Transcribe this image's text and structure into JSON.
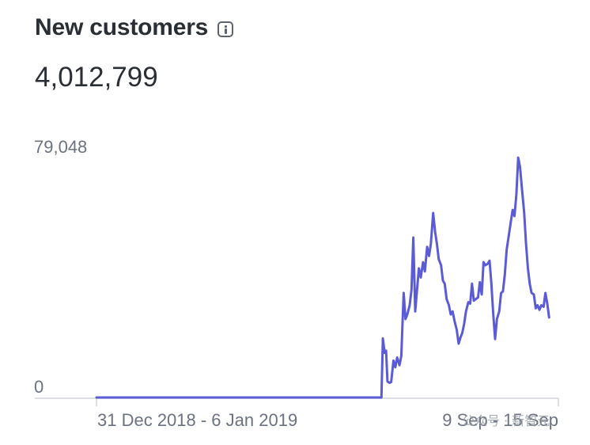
{
  "header": {
    "title": "New customers",
    "info_icon": "info-icon"
  },
  "total": "4,012,799",
  "colors": {
    "line": "#5b5bd6",
    "axis": "#d0d4da",
    "text": "#2a2f36",
    "muted": "#6b7280"
  },
  "watermark": "公众号 · 新智元",
  "chart_data": {
    "type": "line",
    "title": "",
    "xlabel": "",
    "ylabel": "",
    "ylim": [
      0,
      79048
    ],
    "y_tick_labels": [
      "79,048",
      "0"
    ],
    "x_tick_labels": [
      "31 Dec 2018 - 6 Jan 2019",
      "9 Sep - 15 Sep"
    ],
    "x_range": [
      0,
      100
    ],
    "grid": false,
    "legend": "none",
    "series": [
      {
        "values": [
          [
            0,
            0
          ],
          [
            61.7,
            0
          ],
          [
            62.0,
            19200
          ],
          [
            62.4,
            14500
          ],
          [
            62.7,
            15200
          ],
          [
            63.0,
            5200
          ],
          [
            63.4,
            4800
          ],
          [
            63.8,
            5000
          ],
          [
            64.3,
            12000
          ],
          [
            64.7,
            9800
          ],
          [
            65.1,
            13000
          ],
          [
            65.6,
            10500
          ],
          [
            66.0,
            13500
          ],
          [
            66.5,
            34000
          ],
          [
            66.9,
            25500
          ],
          [
            67.3,
            27000
          ],
          [
            67.8,
            30000
          ],
          [
            68.2,
            35000
          ],
          [
            68.6,
            52000
          ],
          [
            69.0,
            28000
          ],
          [
            69.4,
            35000
          ],
          [
            69.8,
            42000
          ],
          [
            70.2,
            39000
          ],
          [
            70.7,
            44000
          ],
          [
            71.1,
            41000
          ],
          [
            71.6,
            49000
          ],
          [
            72.0,
            46000
          ],
          [
            72.4,
            50000
          ],
          [
            72.9,
            60000
          ],
          [
            73.3,
            54000
          ],
          [
            73.7,
            50000
          ],
          [
            74.1,
            45000
          ],
          [
            74.6,
            43000
          ],
          [
            75.0,
            38000
          ],
          [
            75.4,
            37000
          ],
          [
            75.8,
            32000
          ],
          [
            76.3,
            30000
          ],
          [
            76.7,
            27000
          ],
          [
            77.1,
            28000
          ],
          [
            77.5,
            25000
          ],
          [
            78.0,
            22000
          ],
          [
            78.4,
            17500
          ],
          [
            78.8,
            19500
          ],
          [
            79.2,
            21000
          ],
          [
            79.6,
            24000
          ],
          [
            80.0,
            28000
          ],
          [
            80.5,
            31000
          ],
          [
            80.9,
            30500
          ],
          [
            81.3,
            37000
          ],
          [
            81.7,
            31500
          ],
          [
            82.1,
            32000
          ],
          [
            82.6,
            32500
          ],
          [
            83.0,
            37500
          ],
          [
            83.4,
            33500
          ],
          [
            83.8,
            44000
          ],
          [
            84.2,
            43000
          ],
          [
            84.7,
            43500
          ],
          [
            85.1,
            44500
          ],
          [
            85.5,
            37000
          ],
          [
            85.9,
            27000
          ],
          [
            86.3,
            19000
          ],
          [
            86.7,
            25500
          ],
          [
            87.2,
            28000
          ],
          [
            87.6,
            34000
          ],
          [
            88.0,
            34500
          ],
          [
            88.4,
            40000
          ],
          [
            88.8,
            48000
          ],
          [
            89.3,
            53000
          ],
          [
            89.7,
            57000
          ],
          [
            90.1,
            61000
          ],
          [
            90.5,
            59000
          ],
          [
            90.9,
            66000
          ],
          [
            91.3,
            78000
          ],
          [
            91.7,
            75000
          ],
          [
            92.1,
            68000
          ],
          [
            92.6,
            60000
          ],
          [
            93.0,
            50000
          ],
          [
            93.4,
            42000
          ],
          [
            93.8,
            37000
          ],
          [
            94.2,
            34000
          ],
          [
            94.7,
            33500
          ],
          [
            95.1,
            29000
          ],
          [
            95.5,
            30000
          ],
          [
            95.9,
            28500
          ],
          [
            96.3,
            30000
          ],
          [
            96.8,
            29500
          ],
          [
            97.2,
            34000
          ],
          [
            97.6,
            30500
          ],
          [
            98.0,
            26000
          ]
        ]
      }
    ]
  }
}
